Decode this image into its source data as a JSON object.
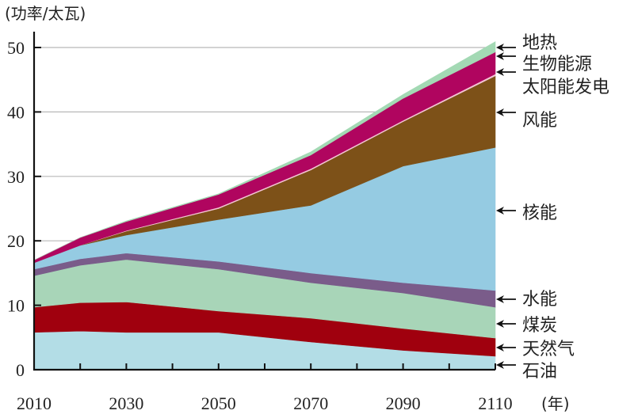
{
  "chart_data": {
    "type": "area",
    "stacked": true,
    "title": "",
    "ylabel": "(功率/太瓦)",
    "xlabel": "(年)",
    "ylim": [
      0,
      50
    ],
    "xlim": [
      2010,
      2110
    ],
    "grid": "horizontal",
    "y_ticks": [
      0,
      10,
      20,
      30,
      40,
      50
    ],
    "x_tick_labels": [
      2010,
      2030,
      2050,
      2070,
      2090,
      2110
    ],
    "x_minor_ticks": [
      2020,
      2030,
      2040,
      2050,
      2060,
      2070,
      2080,
      2090,
      2100,
      2110
    ],
    "legend_placement": "right",
    "x": [
      2010,
      2020,
      2030,
      2050,
      2070,
      2090,
      2110
    ],
    "series": [
      {
        "name": "石油",
        "color": "#b3dde6",
        "values": [
          5.8,
          6.0,
          5.8,
          5.8,
          4.3,
          3.0,
          2.1
        ]
      },
      {
        "name": "天然气",
        "color": "#a0000e",
        "values": [
          3.9,
          4.4,
          4.7,
          3.3,
          3.7,
          3.4,
          2.8
        ]
      },
      {
        "name": "煤炭",
        "color": "#a8d5b8",
        "values": [
          4.9,
          5.8,
          6.6,
          6.5,
          5.5,
          5.5,
          4.8
        ]
      },
      {
        "name": "水能",
        "color": "#7a5c8a",
        "values": [
          1.0,
          1.0,
          1.0,
          1.2,
          1.5,
          1.6,
          2.6
        ]
      },
      {
        "name": "核能",
        "color": "#95cbe2",
        "values": [
          1.0,
          2.1,
          2.8,
          6.5,
          10.5,
          18.1,
          22.2
        ]
      },
      {
        "name": "风能",
        "color": "#7d5118",
        "values": [
          0.0,
          0.0,
          0.6,
          1.7,
          5.5,
          6.9,
          11.1
        ]
      },
      {
        "name": "太阳能发电",
        "color": "#f4c5d5",
        "values": [
          0.0,
          0.0,
          0.1,
          0.2,
          0.2,
          0.2,
          0.3
        ]
      },
      {
        "name": "生物能源",
        "color": "#b0055f",
        "values": [
          0.4,
          1.2,
          1.4,
          2.0,
          2.1,
          3.4,
          3.4
        ]
      },
      {
        "name": "地热",
        "color": "#a3d9b4",
        "values": [
          0.0,
          0.0,
          0.1,
          0.1,
          0.5,
          0.6,
          1.6
        ]
      }
    ],
    "legend": [
      {
        "label": "地热",
        "series": "地热"
      },
      {
        "label": "生物能源",
        "series": "生物能源"
      },
      {
        "label": "太阳能发电",
        "series": "太阳能发电"
      },
      {
        "label": "风能",
        "series": "风能"
      },
      {
        "label": "核能",
        "series": "核能"
      },
      {
        "label": "水能",
        "series": "水能"
      },
      {
        "label": "煤炭",
        "series": "煤炭"
      },
      {
        "label": "天然气",
        "series": "天然气"
      },
      {
        "label": "石油",
        "series": "石油"
      }
    ]
  }
}
